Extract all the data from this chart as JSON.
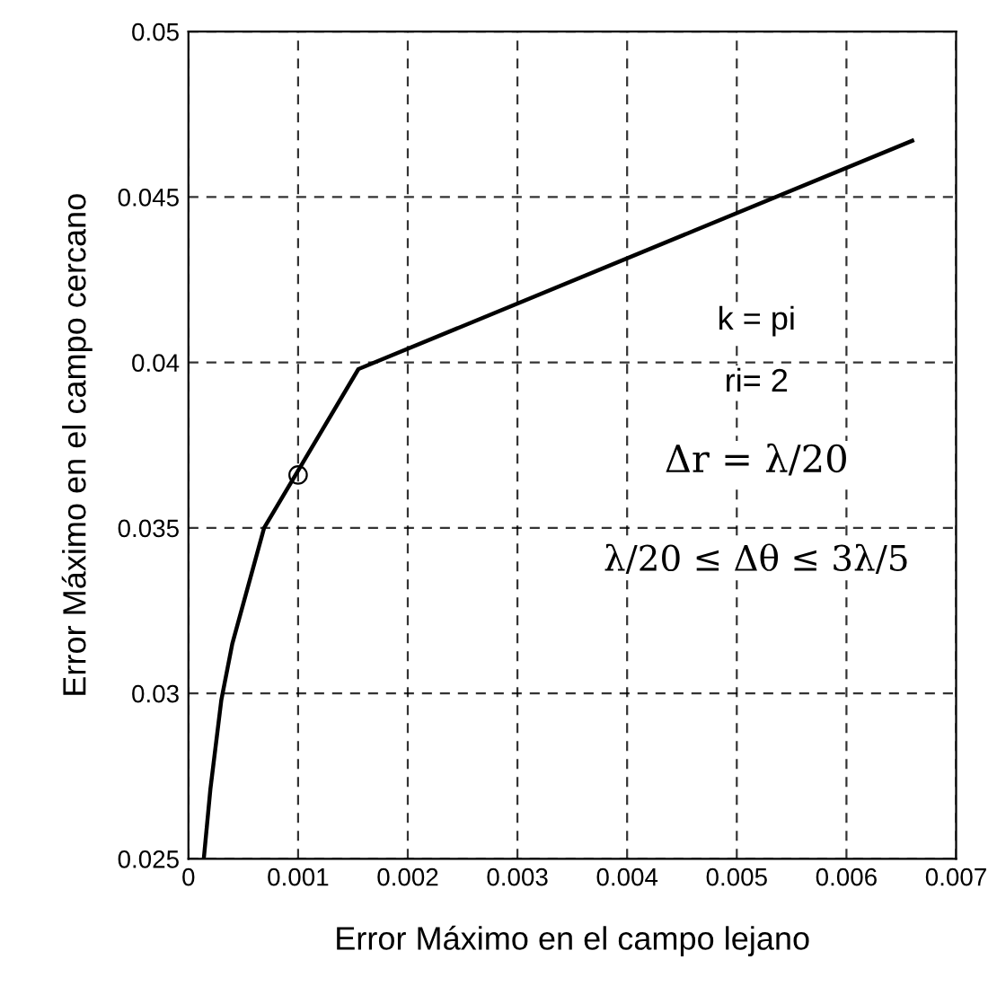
{
  "chart_data": {
    "type": "line",
    "xlabel": "Error Máximo en el campo lejano",
    "ylabel": "Error Máximo en el campo cercano",
    "series": [
      {
        "color": "#000000",
        "x": [
          0.00014,
          0.0002,
          0.0003,
          0.0004,
          0.00069,
          0.00155,
          0.0066
        ],
        "values": [
          0.025,
          0.0271,
          0.0298,
          0.0315,
          0.035,
          0.0398,
          0.0467
        ]
      },
      {
        "type": "scatter",
        "color": "#000000",
        "marker": "circle",
        "x": [
          0.001
        ],
        "values": [
          0.0366
        ]
      }
    ],
    "xlim": [
      0,
      0.007
    ],
    "xticks": [
      0,
      0.001,
      0.002,
      0.003,
      0.004,
      0.005,
      0.006,
      0.007
    ],
    "ylim": [
      0.025,
      0.05
    ],
    "yticks": [
      0.025,
      0.03,
      0.035,
      0.04,
      0.045,
      0.05
    ],
    "grid": true,
    "line_style": "solid",
    "annotations": [
      "k = pi",
      "ri= 2",
      "Δr = λ/20",
      "λ/20 ≤ Δθ ≤ 3λ/5"
    ]
  }
}
